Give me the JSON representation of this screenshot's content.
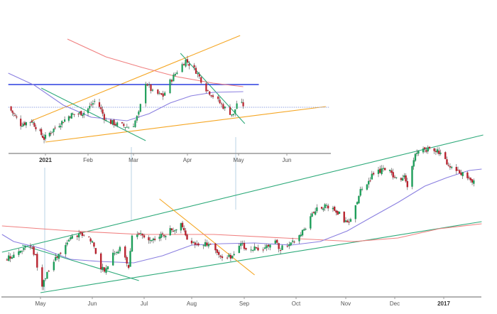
{
  "chart_data": [
    {
      "type": "candlestick",
      "panel": "inset-top",
      "x_ticks": [
        {
          "label": "2021",
          "date": "2021-01-01",
          "bold": true
        },
        {
          "label": "Feb",
          "date": "2021-02-01"
        },
        {
          "label": "Mar",
          "date": "2021-03-01"
        },
        {
          "label": "Apr",
          "date": "2021-04-01"
        },
        {
          "label": "May",
          "date": "2021-05-01"
        },
        {
          "label": "Jun",
          "date": "2021-06-01"
        }
      ],
      "close_path": [
        [
          "2020-12-05",
          66
        ],
        [
          "2020-12-14",
          41
        ],
        [
          "2020-12-22",
          46
        ],
        [
          "2020-12-31",
          21
        ],
        [
          "2021-01-09",
          38
        ],
        [
          "2021-01-19",
          54
        ],
        [
          "2021-01-30",
          58
        ],
        [
          "2021-02-06",
          76
        ],
        [
          "2021-02-12",
          46
        ],
        [
          "2021-02-19",
          41
        ],
        [
          "2021-02-28",
          36
        ],
        [
          "2021-03-04",
          56
        ],
        [
          "2021-03-08",
          101
        ],
        [
          "2021-03-12",
          86
        ],
        [
          "2021-03-18",
          81
        ],
        [
          "2021-03-22",
          101
        ],
        [
          "2021-03-26",
          116
        ],
        [
          "2021-03-31",
          131
        ],
        [
          "2021-04-06",
          116
        ],
        [
          "2021-04-12",
          91
        ],
        [
          "2021-04-18",
          76
        ],
        [
          "2021-04-24",
          61
        ],
        [
          "2021-04-28",
          54
        ],
        [
          "2021-04-30",
          71
        ],
        [
          "2021-05-04",
          68
        ]
      ],
      "lines": [
        {
          "kind": "trend",
          "color": "#f5a623",
          "points": [
            [
              "2020-12-22",
              46
            ],
            [
              "2021-05-02",
              166
            ]
          ]
        },
        {
          "kind": "trend",
          "color": "#f5a623",
          "points": [
            [
              "2021-01-01",
              16
            ],
            [
              "2021-06-26",
              66
            ]
          ]
        },
        {
          "kind": "trend",
          "color": "#2eaa7a",
          "points": [
            [
              "2020-12-29",
              92
            ],
            [
              "2021-03-08",
              18
            ]
          ]
        },
        {
          "kind": "trend",
          "color": "#2eaa7a",
          "points": [
            [
              "2021-03-28",
              141
            ],
            [
              "2021-05-05",
              42
            ]
          ]
        },
        {
          "kind": "horizontal",
          "color": "#2b3fe0",
          "points": [
            [
              "2020-12-05",
              97
            ],
            [
              "2021-05-14",
              97
            ]
          ]
        },
        {
          "kind": "dotted",
          "color": "#8fa0e0",
          "points": [
            [
              "2020-12-05",
              65
            ],
            [
              "2021-06-28",
              65
            ]
          ]
        },
        {
          "kind": "ma",
          "color": "#f08080",
          "points": [
            [
              "2021-01-17",
              161
            ],
            [
              "2021-02-12",
              136
            ],
            [
              "2021-03-06",
              121
            ],
            [
              "2021-03-26",
              108
            ],
            [
              "2021-04-16",
              99
            ],
            [
              "2021-05-04",
              94
            ]
          ]
        },
        {
          "kind": "ma",
          "color": "#8a7fe0",
          "points": [
            [
              "2020-12-05",
              113
            ],
            [
              "2020-12-24",
              96
            ],
            [
              "2021-01-14",
              68
            ],
            [
              "2021-02-03",
              51
            ],
            [
              "2021-02-25",
              46
            ],
            [
              "2021-03-10",
              56
            ],
            [
              "2021-03-22",
              71
            ],
            [
              "2021-04-03",
              81
            ],
            [
              "2021-04-16",
              86
            ],
            [
              "2021-05-04",
              87
            ]
          ]
        }
      ]
    },
    {
      "type": "candlestick",
      "panel": "main-bottom",
      "x_ticks": [
        {
          "label": "May",
          "date": "2016-05-01"
        },
        {
          "label": "Jun",
          "date": "2016-06-01"
        },
        {
          "label": "Jul",
          "date": "2016-07-01"
        },
        {
          "label": "Aug",
          "date": "2016-08-01"
        },
        {
          "label": "Sep",
          "date": "2016-09-01"
        },
        {
          "label": "Oct",
          "date": "2016-10-01"
        },
        {
          "label": "Nov",
          "date": "2016-11-01"
        },
        {
          "label": "Dec",
          "date": "2016-12-01"
        },
        {
          "label": "2017",
          "date": "2017-01-01",
          "bold": true
        }
      ],
      "close_path": [
        [
          "2016-04-09",
          53
        ],
        [
          "2016-04-15",
          60
        ],
        [
          "2016-04-24",
          73
        ],
        [
          "2016-04-28",
          58
        ],
        [
          "2016-05-01",
          13
        ],
        [
          "2016-05-07",
          43
        ],
        [
          "2016-05-15",
          68
        ],
        [
          "2016-05-19",
          83
        ],
        [
          "2016-05-28",
          88
        ],
        [
          "2016-06-01",
          78
        ],
        [
          "2016-06-05",
          43
        ],
        [
          "2016-06-09",
          38
        ],
        [
          "2016-06-13",
          63
        ],
        [
          "2016-06-19",
          68
        ],
        [
          "2016-06-22",
          38
        ],
        [
          "2016-06-24",
          88
        ],
        [
          "2016-06-29",
          88
        ],
        [
          "2016-07-06",
          78
        ],
        [
          "2016-07-11",
          85
        ],
        [
          "2016-07-18",
          93
        ],
        [
          "2016-07-25",
          103
        ],
        [
          "2016-07-28",
          88
        ],
        [
          "2016-08-01",
          73
        ],
        [
          "2016-08-07",
          78
        ],
        [
          "2016-08-14",
          68
        ],
        [
          "2016-08-21",
          53
        ],
        [
          "2016-08-27",
          60
        ],
        [
          "2016-08-30",
          73
        ],
        [
          "2016-09-05",
          68
        ],
        [
          "2016-09-11",
          68
        ],
        [
          "2016-09-18",
          78
        ],
        [
          "2016-09-22",
          68
        ],
        [
          "2016-09-28",
          73
        ],
        [
          "2016-10-02",
          83
        ],
        [
          "2016-10-07",
          98
        ],
        [
          "2016-10-11",
          118
        ],
        [
          "2016-10-18",
          128
        ],
        [
          "2016-10-22",
          128
        ],
        [
          "2016-10-28",
          118
        ],
        [
          "2016-11-02",
          103
        ],
        [
          "2016-11-06",
          118
        ],
        [
          "2016-11-10",
          148
        ],
        [
          "2016-11-15",
          163
        ],
        [
          "2016-11-19",
          178
        ],
        [
          "2016-11-26",
          178
        ],
        [
          "2016-12-03",
          168
        ],
        [
          "2016-12-07",
          168
        ],
        [
          "2016-12-09",
          158
        ],
        [
          "2016-12-14",
          198
        ],
        [
          "2016-12-18",
          208
        ],
        [
          "2016-12-25",
          208
        ],
        [
          "2016-12-30",
          203
        ],
        [
          "2017-01-03",
          188
        ],
        [
          "2017-01-10",
          178
        ],
        [
          "2017-01-17",
          168
        ],
        [
          "2017-01-22",
          156
        ]
      ],
      "lines": [
        {
          "kind": "trend",
          "color": "#2eaa7a",
          "points": [
            [
              "2016-04-08",
              63
            ],
            [
              "2017-01-26",
              228
            ]
          ]
        },
        {
          "kind": "trend",
          "color": "#2eaa7a",
          "points": [
            [
              "2016-05-01",
              6
            ],
            [
              "2017-01-25",
              106
            ]
          ]
        },
        {
          "kind": "trend",
          "color": "#2eaa7a",
          "points": [
            [
              "2016-04-20",
              73
            ],
            [
              "2016-06-28",
              23
            ]
          ]
        },
        {
          "kind": "trend",
          "color": "#f5a623",
          "points": [
            [
              "2016-07-11",
              138
            ],
            [
              "2016-09-07",
              31
            ]
          ]
        },
        {
          "kind": "ma",
          "color": "#f08080",
          "points": [
            [
              "2016-04-08",
              100
            ],
            [
              "2016-05-19",
              93
            ],
            [
              "2016-06-29",
              88
            ],
            [
              "2016-08-14",
              88
            ],
            [
              "2016-09-24",
              83
            ],
            [
              "2016-11-06",
              78
            ],
            [
              "2016-12-03",
              83
            ],
            [
              "2016-12-29",
              96
            ],
            [
              "2017-01-25",
              103
            ]
          ]
        },
        {
          "kind": "ma",
          "color": "#8a7fe0",
          "points": [
            [
              "2016-04-08",
              88
            ],
            [
              "2016-04-15",
              78
            ],
            [
              "2016-05-02",
              68
            ],
            [
              "2016-05-19",
              53
            ],
            [
              "2016-06-05",
              50
            ],
            [
              "2016-06-25",
              48
            ],
            [
              "2016-07-13",
              58
            ],
            [
              "2016-08-01",
              73
            ],
            [
              "2016-08-19",
              75
            ],
            [
              "2016-09-07",
              76
            ],
            [
              "2016-09-28",
              73
            ],
            [
              "2016-10-16",
              78
            ],
            [
              "2016-11-02",
              93
            ],
            [
              "2016-11-15",
              110
            ],
            [
              "2016-12-03",
              133
            ],
            [
              "2016-12-20",
              156
            ],
            [
              "2017-01-03",
              168
            ],
            [
              "2017-01-17",
              178
            ],
            [
              "2017-01-25",
              180
            ]
          ]
        }
      ]
    }
  ],
  "colors": {
    "up": "#1e9e5a",
    "down": "#b8232f",
    "axis": "#999999",
    "connector": "#b9d3e6"
  }
}
